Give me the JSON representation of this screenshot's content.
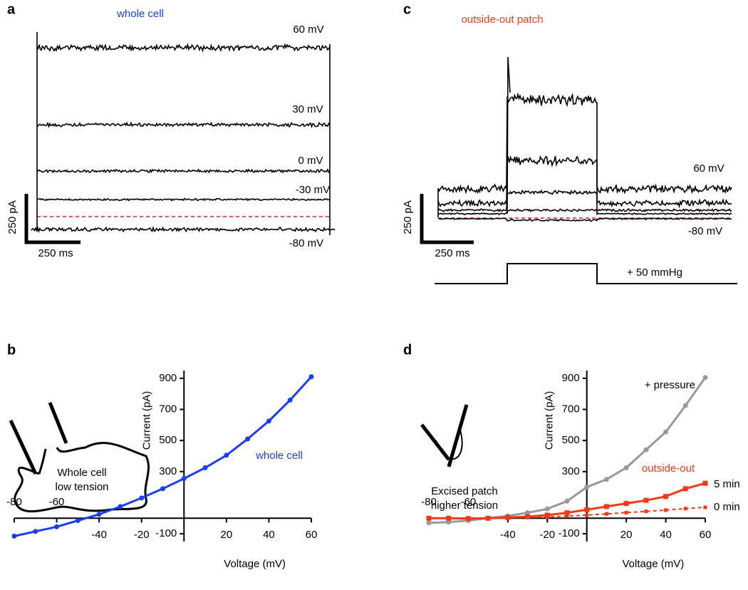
{
  "panels": [
    {
      "label": "a",
      "title": "whole cell",
      "trace_labels": [
        "60 mV",
        "30 mV",
        "0 mV",
        "-30 mV",
        "-80 mV"
      ],
      "scale_current": "250 pA",
      "scale_time": "250 ms"
    },
    {
      "label": "c",
      "title": "outside-out patch",
      "trace_labels": [
        "60 mV",
        "-80 mV"
      ],
      "scale_current": "250 pA",
      "scale_time": "250 ms",
      "stimulus_label": "+ 50 mmHg"
    }
  ],
  "chart_data": [
    {
      "type": "line",
      "panel_label": "b",
      "xlabel": "Voltage (mV)",
      "ylabel": "Current (pA)",
      "x": [
        -80,
        -70,
        -60,
        -50,
        -40,
        -30,
        -20,
        -10,
        0,
        10,
        20,
        30,
        40,
        50,
        60
      ],
      "series": [
        {
          "name": "whole cell",
          "color": "#1a3ef0",
          "marker": "circle",
          "line_style": "solid",
          "values": [
            -115,
            -85,
            -55,
            -15,
            25,
            75,
            130,
            190,
            255,
            325,
            405,
            510,
            625,
            760,
            910
          ]
        }
      ],
      "xlim": [
        -80,
        60
      ],
      "ylim": [
        -150,
        950
      ],
      "xticks": [
        -80,
        -60,
        -40,
        -20,
        20,
        40,
        60
      ],
      "yticks": [
        -100,
        300,
        500,
        700,
        900
      ],
      "inset_text": [
        "Whole cell",
        "low tension"
      ]
    },
    {
      "type": "line",
      "panel_label": "d",
      "xlabel": "Voltage (mV)",
      "ylabel": "Current (pA)",
      "x": [
        -80,
        -70,
        -60,
        -50,
        -40,
        -30,
        -20,
        -10,
        0,
        10,
        20,
        30,
        40,
        50,
        60
      ],
      "series": [
        {
          "name": "+ pressure",
          "color": "#999999",
          "marker": "circle",
          "line_style": "solid",
          "values": [
            -30,
            -25,
            -15,
            0,
            15,
            35,
            60,
            110,
            200,
            250,
            325,
            440,
            555,
            725,
            905
          ]
        },
        {
          "name": "5 min",
          "color": "#f03a17",
          "marker": "square",
          "line_style": "solid",
          "values": [
            0,
            0,
            -2,
            0,
            5,
            10,
            20,
            35,
            55,
            75,
            95,
            115,
            140,
            190,
            225
          ]
        },
        {
          "name": "0 min",
          "color": "#f03a17",
          "marker": "square",
          "line_style": "dashed",
          "values": [
            0,
            0,
            -2,
            0,
            2,
            5,
            8,
            14,
            20,
            28,
            36,
            44,
            52,
            62,
            70
          ]
        }
      ],
      "annotation": "outside-out",
      "xlim": [
        -80,
        60
      ],
      "ylim": [
        -150,
        950
      ],
      "xticks": [
        -80,
        -60,
        -40,
        -20,
        20,
        40,
        60
      ],
      "yticks": [
        -100,
        300,
        500,
        700,
        900
      ],
      "inset_text": [
        "Excised patch",
        "higher tension"
      ]
    }
  ]
}
